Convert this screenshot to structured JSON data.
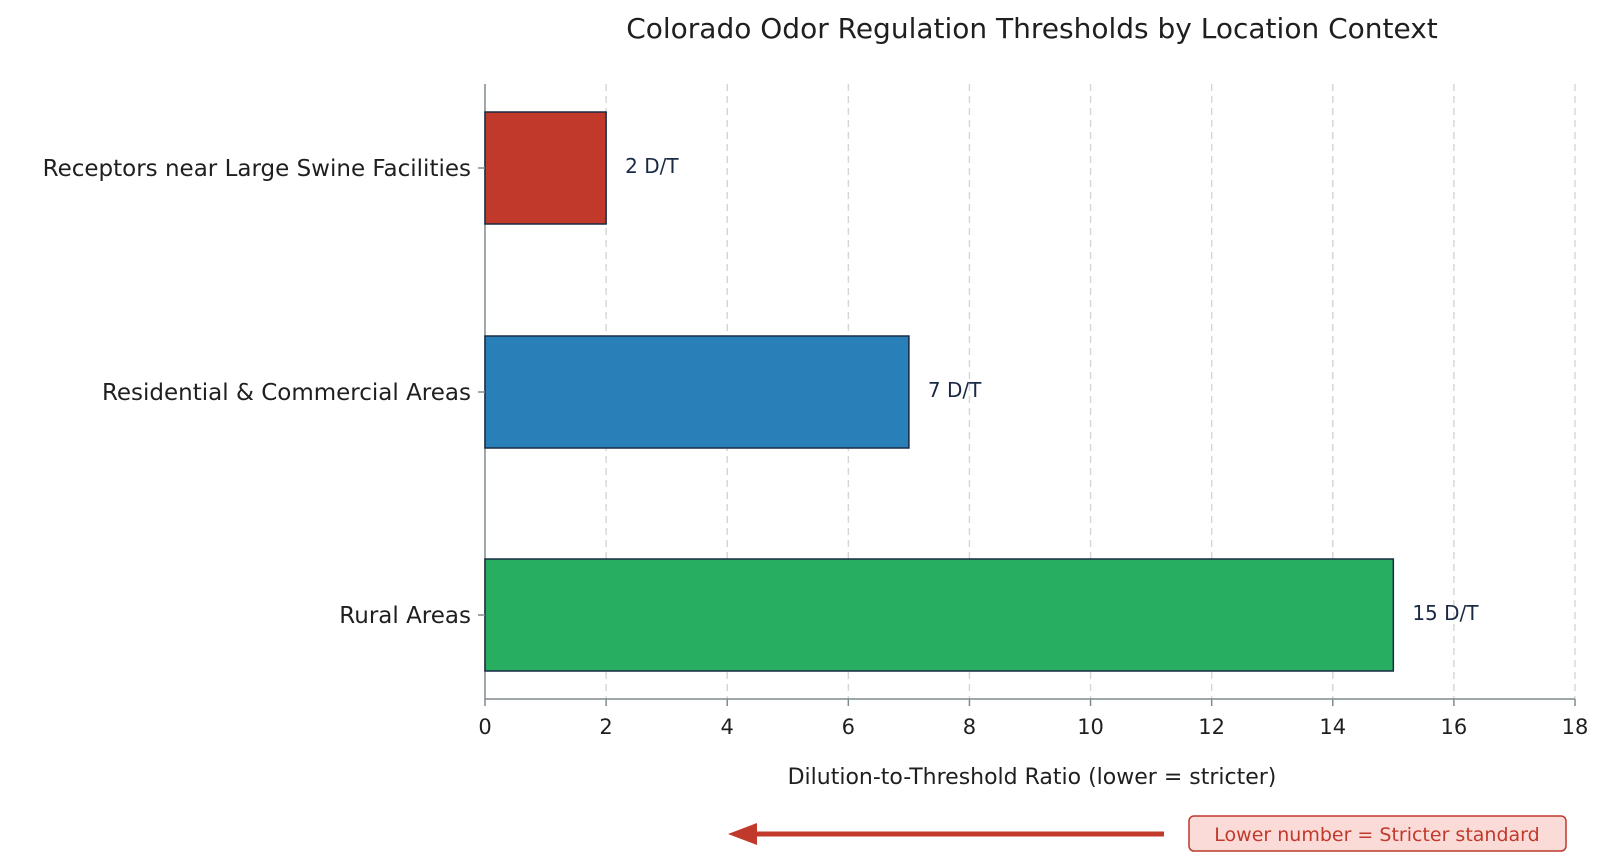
{
  "chart_data": {
    "type": "bar",
    "orientation": "horizontal",
    "title": "Colorado Odor Regulation Thresholds by Location Context",
    "xlabel": "Dilution-to-Threshold Ratio (lower = stricter)",
    "ylabel": "",
    "xlim": [
      0,
      18
    ],
    "xticks": [
      0,
      2,
      4,
      6,
      8,
      10,
      12,
      14,
      16,
      18
    ],
    "grid": "vertical dashed",
    "categories": [
      "Receptors near Large Swine Facilities",
      "Residential & Commercial Areas",
      "Rural Areas"
    ],
    "values": [
      2,
      7,
      15
    ],
    "data_labels": [
      "2 D/T",
      "7 D/T",
      "15 D/T"
    ],
    "colors": [
      "#c0392b",
      "#2980b9",
      "#27ae60"
    ],
    "annotation": {
      "text": "Lower number = Stricter standard",
      "arrow_direction": "left",
      "color": "#c0392b",
      "box_fill": "#fadbd8"
    }
  }
}
